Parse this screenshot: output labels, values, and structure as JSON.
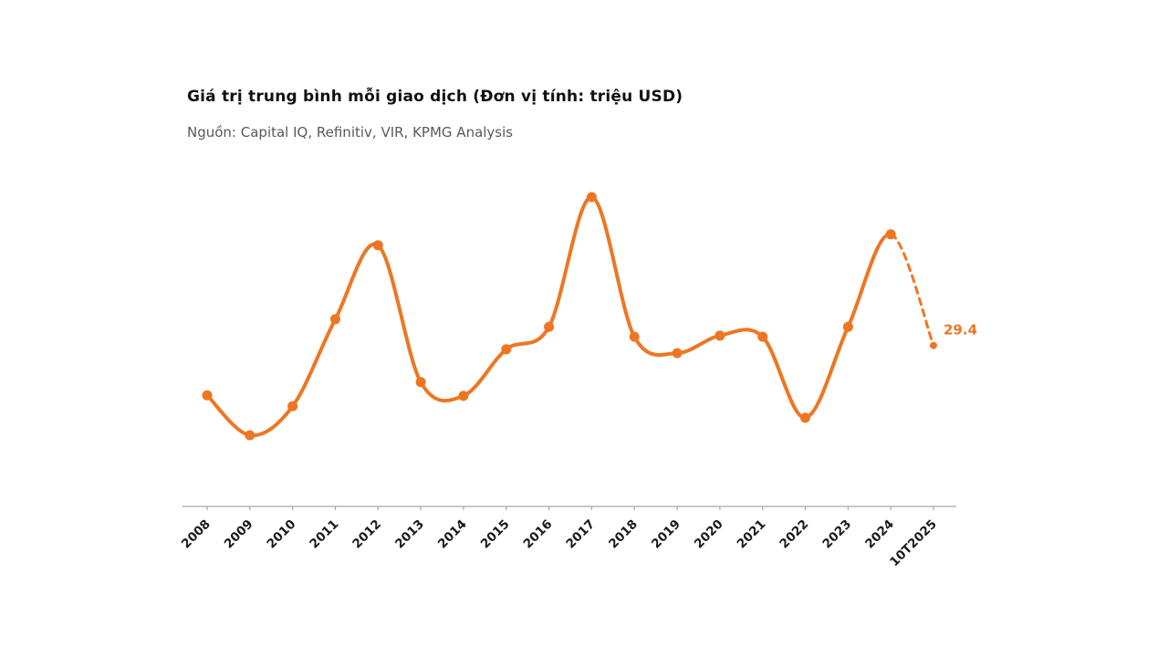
{
  "header": {
    "title": "Giá trị trung bình mỗi giao dịch (Đơn vị tính: triệu USD)",
    "subtitle": "Nguồn: Capital IQ, Refinitiv, VIR, KPMG Analysis"
  },
  "chart_data": {
    "type": "line",
    "title": "Giá trị trung bình mỗi giao dịch (Đơn vị tính: triệu USD)",
    "subtitle": "Nguồn: Capital IQ, Refinitiv, VIR, KPMG Analysis",
    "categories": [
      "2008",
      "2009",
      "2010",
      "2011",
      "2012",
      "2013",
      "2014",
      "2015",
      "2016",
      "2017",
      "2018",
      "2019",
      "2020",
      "2021",
      "2022",
      "2023",
      "2024",
      "10T2025"
    ],
    "series": [
      {
        "name": "Giá trị trung bình mỗi giao dịch (triệu USD)",
        "values": [
          20.3,
          13.0,
          18.3,
          34.2,
          47.7,
          22.7,
          20.2,
          28.7,
          32.8,
          56.5,
          31.0,
          28.0,
          31.2,
          31.0,
          16.2,
          32.8,
          49.7,
          29.4
        ]
      }
    ],
    "annotation": {
      "label": "29.4",
      "index": 17
    },
    "dashed_segment": {
      "from_index": 16,
      "to_index": 17
    },
    "xlabel": "",
    "ylabel": "",
    "ylim": [
      0,
      60
    ],
    "grid": false,
    "legend": "none",
    "line_color": "#ee7623",
    "axis_color": "#a6a6a6",
    "tick_label_color": "#1a1a1a",
    "annotation_color": "#ee7623",
    "marker": "circle"
  }
}
